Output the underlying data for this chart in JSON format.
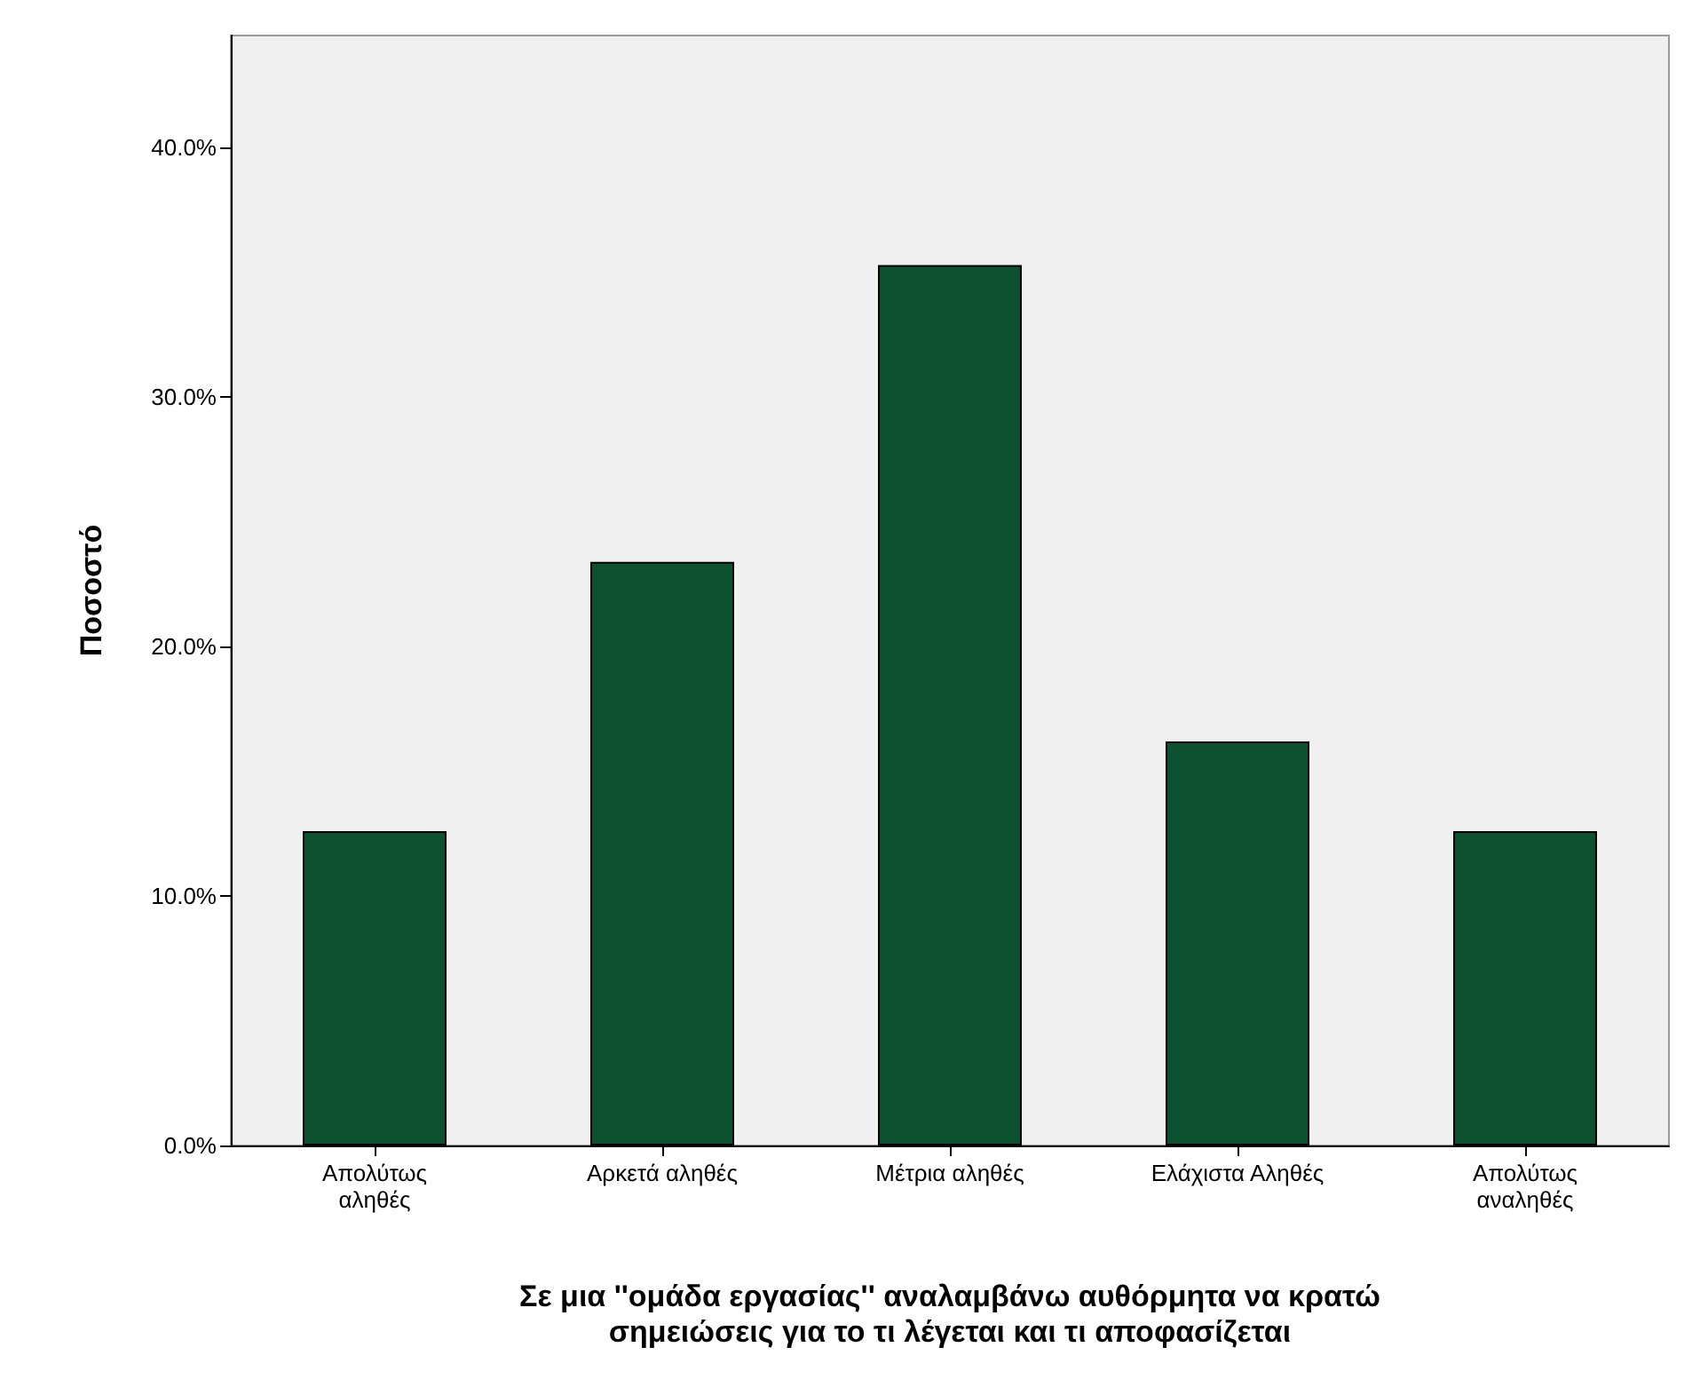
{
  "chart_data": {
    "type": "bar",
    "categories": [
      "Απολύτως\nαληθές",
      "Αρκετά αληθές",
      "Μέτρια αληθές",
      "Ελάχιστα Αληθές",
      "Απολύτως\nαναληθές"
    ],
    "values": [
      12.6,
      23.4,
      35.3,
      16.2,
      12.6
    ],
    "color": "#0d5230",
    "xlabel": "Σε μια ''ομάδα εργασίας'' αναλαμβάνω αυθόρμητα να κρατώ\nσημειώσεις για το τι λέγεται και τι αποφασίζεται",
    "ylabel": "Ποσοστό",
    "ylim": [
      0,
      44.5
    ],
    "yticks": [
      {
        "value": 0,
        "label": "0.0%"
      },
      {
        "value": 10,
        "label": "10.0%"
      },
      {
        "value": 20,
        "label": "20.0%"
      },
      {
        "value": 30,
        "label": "30.0%"
      },
      {
        "value": 40,
        "label": "40.0%"
      }
    ],
    "grid": false
  }
}
